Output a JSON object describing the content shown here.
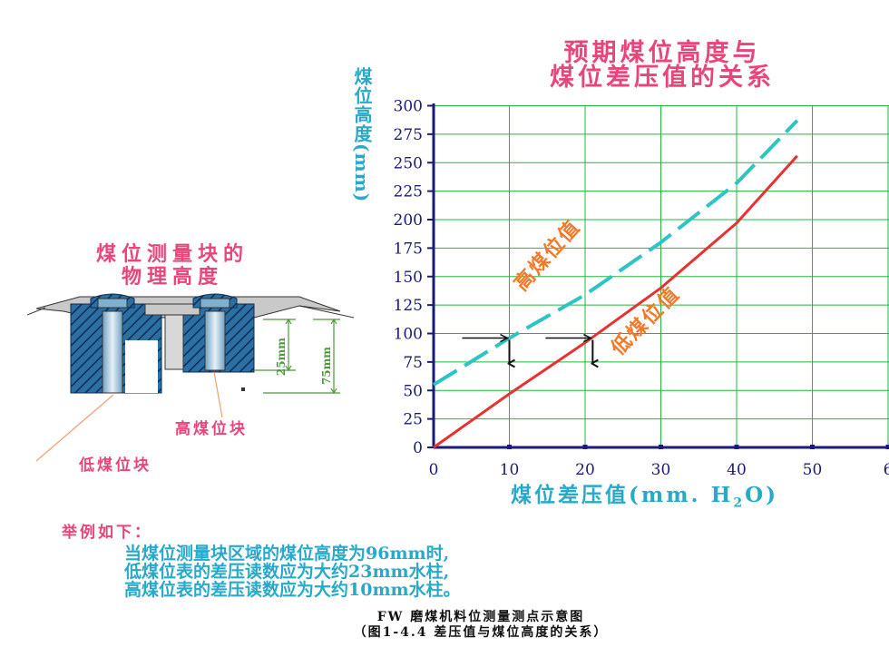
{
  "chart_data": {
    "type": "line",
    "title": [
      "预期煤位高度与",
      "煤位差压值的关系"
    ],
    "ylabel": "煤位高度(mm)",
    "xlabel_main": "煤位差压值(mm. H",
    "xlabel_sub": "2",
    "xlabel_end": "O)",
    "xlim": [
      0,
      60
    ],
    "ylim": [
      0,
      300
    ],
    "x_ticks": [
      "0",
      "10",
      "20",
      "30",
      "40",
      "50",
      "6"
    ],
    "y_ticks": [
      "0",
      "25",
      "50",
      "75",
      "100",
      "125",
      "150",
      "175",
      "200",
      "225",
      "250",
      "275",
      "300"
    ],
    "series": [
      {
        "name": "高煤位值",
        "color": "#2ec4c4",
        "style": "dashed",
        "x": [
          0,
          10,
          20,
          30,
          40,
          48
        ],
        "y": [
          55,
          96,
          134,
          180,
          232,
          287
        ]
      },
      {
        "name": "低煤位值",
        "color": "#e83232",
        "style": "solid",
        "x": [
          0,
          10,
          20,
          30,
          40,
          48
        ],
        "y": [
          0,
          47,
          92,
          140,
          197,
          256
        ]
      }
    ],
    "grid": true,
    "grid_color": "#22b83a",
    "annotations": [
      {
        "curve": "high",
        "x": 10,
        "y": 96
      },
      {
        "curve": "low",
        "x": 21,
        "y": 96
      }
    ]
  },
  "left_figure": {
    "title": [
      "煤位测量块的",
      "物理高度"
    ],
    "dim_short": "25mm",
    "dim_long": "75mm",
    "label_high": "高煤位块",
    "label_low": "低煤位块"
  },
  "example": {
    "heading": "举例如下：",
    "lines": [
      "当煤位测量块区域的煤位高度为96mm时,",
      "低煤位表的差压读数应为大约23mm水柱,",
      "高煤位表的差压读数应为大约10mm水柱。"
    ]
  },
  "caption": {
    "line1": "FW 磨煤机料位测量测点示意图",
    "line2": "（图1-4.4  差压值与煤位高度的关系）"
  },
  "colors": {
    "pink": "#e8457a",
    "cyan": "#28a9c8",
    "axis": "#1a1a7a",
    "orange": "#f07a2a"
  }
}
